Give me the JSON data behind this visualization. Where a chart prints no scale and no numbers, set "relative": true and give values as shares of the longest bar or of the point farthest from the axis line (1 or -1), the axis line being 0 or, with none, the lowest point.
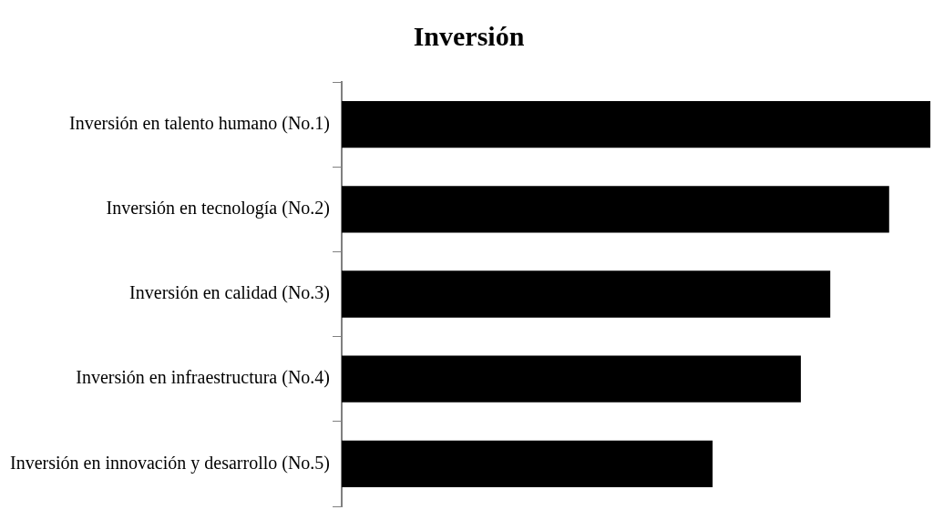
{
  "chart_data": {
    "type": "bar",
    "title": "Inversión",
    "orientation": "horizontal",
    "relative": true,
    "categories": [
      "Inversión en talento humano (No.1)",
      "Inversión en tecnología (No.2)",
      "Inversión en calidad (No.3)",
      "Inversión en infraestructura (No.4)",
      "Inversión en innovación y desarrollo (No.5)"
    ],
    "values": [
      1,
      0.93,
      0.83,
      0.78,
      0.63
    ],
    "color": "#000000",
    "grid": false,
    "legend": false
  }
}
